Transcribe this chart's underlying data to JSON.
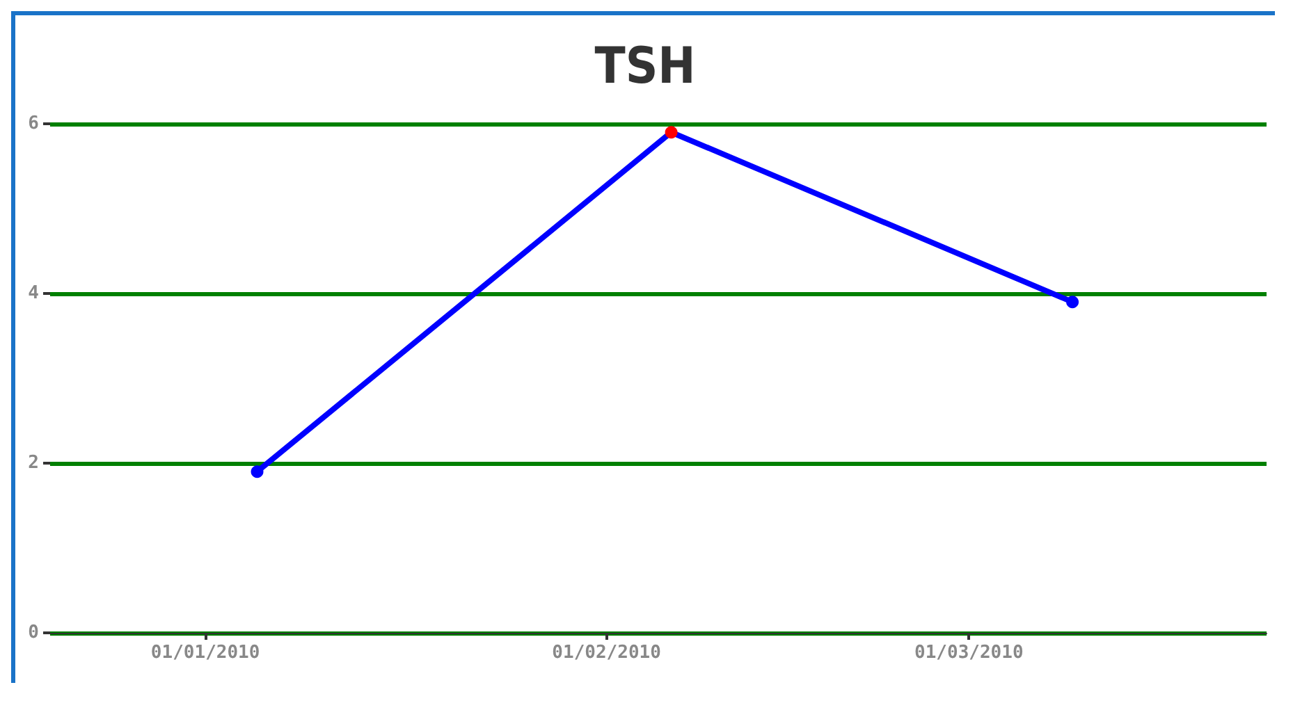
{
  "chart_data": {
    "type": "line",
    "title": "TSH",
    "x": [
      "2010-01-05",
      "2010-02-06",
      "2010-03-09"
    ],
    "series": [
      {
        "color": "#0000ff",
        "colors": [
          "#0000ff",
          "#ff0000",
          "#0000ff"
        ],
        "values": [
          1.9,
          5.9,
          3.9
        ]
      }
    ],
    "xlim": [
      "2009-12-20",
      "2010-03-24"
    ],
    "xticks": [
      {
        "value": "2010-01-01",
        "label": "01/01/2010"
      },
      {
        "value": "2010-02-01",
        "label": "01/02/2010"
      },
      {
        "value": "2010-03-01",
        "label": "01/03/2010"
      }
    ],
    "ylim": [
      0,
      6
    ],
    "yticks": [
      0,
      2,
      4,
      6
    ],
    "grid": "y",
    "marker": "circle",
    "line_style": "solid"
  }
}
